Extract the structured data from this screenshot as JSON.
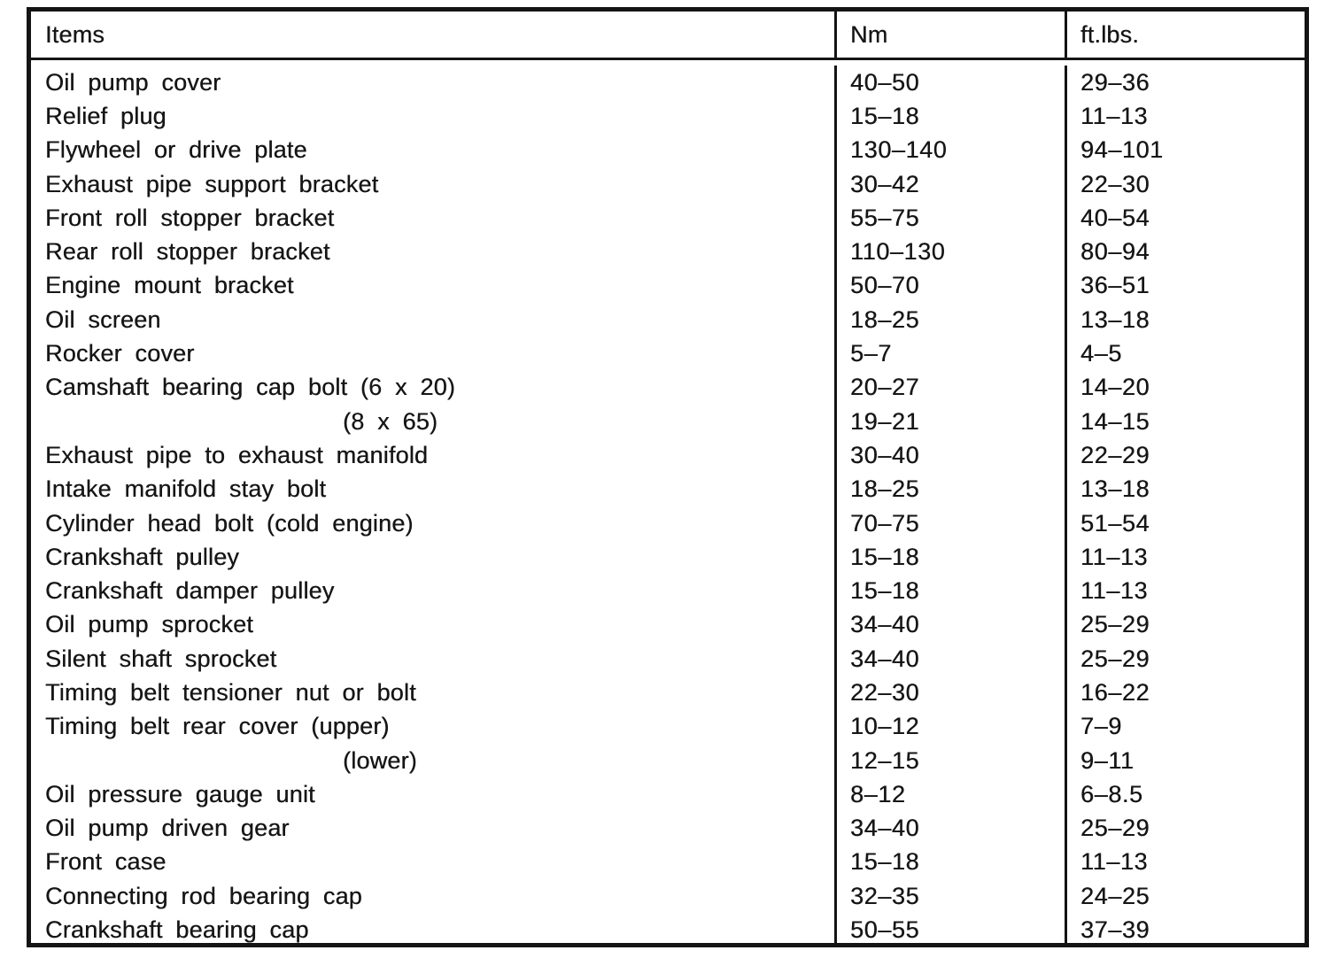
{
  "table": {
    "columns": [
      {
        "label": "Items"
      },
      {
        "label": "Nm"
      },
      {
        "label": "ft.lbs."
      }
    ],
    "rows": [
      {
        "item": "Oil pump cover",
        "nm": "40–50",
        "ftlbs": "29–36",
        "sub": false
      },
      {
        "item": "Relief plug",
        "nm": "15–18",
        "ftlbs": "11–13",
        "sub": false
      },
      {
        "item": "Flywheel or drive plate",
        "nm": "130–140",
        "ftlbs": "94–101",
        "sub": false
      },
      {
        "item": "Exhaust pipe support bracket",
        "nm": "30–42",
        "ftlbs": "22–30",
        "sub": false
      },
      {
        "item": "Front roll stopper bracket",
        "nm": "55–75",
        "ftlbs": "40–54",
        "sub": false
      },
      {
        "item": "Rear roll stopper bracket",
        "nm": "110–130",
        "ftlbs": "80–94",
        "sub": false
      },
      {
        "item": "Engine mount bracket",
        "nm": "50–70",
        "ftlbs": "36–51",
        "sub": false
      },
      {
        "item": "Oil screen",
        "nm": "18–25",
        "ftlbs": "13–18",
        "sub": false
      },
      {
        "item": "Rocker cover",
        "nm": "5–7",
        "ftlbs": "4–5",
        "sub": false
      },
      {
        "item": "Camshaft bearing cap bolt (6 x 20)",
        "nm": "20–27",
        "ftlbs": "14–20",
        "sub": false
      },
      {
        "item": "(8 x 65)",
        "nm": "19–21",
        "ftlbs": "14–15",
        "sub": true
      },
      {
        "item": "Exhaust pipe to exhaust manifold",
        "nm": "30–40",
        "ftlbs": "22–29",
        "sub": false
      },
      {
        "item": "Intake manifold stay bolt",
        "nm": "18–25",
        "ftlbs": "13–18",
        "sub": false
      },
      {
        "item": "Cylinder head bolt (cold engine)",
        "nm": "70–75",
        "ftlbs": "51–54",
        "sub": false
      },
      {
        "item": "Crankshaft pulley",
        "nm": "15–18",
        "ftlbs": "11–13",
        "sub": false
      },
      {
        "item": "Crankshaft damper pulley",
        "nm": "15–18",
        "ftlbs": "11–13",
        "sub": false
      },
      {
        "item": "Oil pump sprocket",
        "nm": "34–40",
        "ftlbs": "25–29",
        "sub": false
      },
      {
        "item": "Silent shaft sprocket",
        "nm": "34–40",
        "ftlbs": "25–29",
        "sub": false
      },
      {
        "item": "Timing belt tensioner nut or bolt",
        "nm": "22–30",
        "ftlbs": "16–22",
        "sub": false
      },
      {
        "item": "Timing belt rear cover (upper)",
        "nm": "10–12",
        "ftlbs": "7–9",
        "sub": false
      },
      {
        "item": "(lower)",
        "nm": "12–15",
        "ftlbs": "9–11",
        "sub": true
      },
      {
        "item": "Oil pressure gauge unit",
        "nm": "8–12",
        "ftlbs": "6–8.5",
        "sub": false
      },
      {
        "item": "Oil pump driven gear",
        "nm": "34–40",
        "ftlbs": "25–29",
        "sub": false
      },
      {
        "item": "Front case",
        "nm": "15–18",
        "ftlbs": "11–13",
        "sub": false
      },
      {
        "item": "Connecting rod bearing cap",
        "nm": "32–35",
        "ftlbs": "24–25",
        "sub": false
      },
      {
        "item": "Crankshaft bearing cap",
        "nm": "50–55",
        "ftlbs": "37–39",
        "sub": false
      }
    ]
  },
  "colors": {
    "ink": "#161616",
    "paper": "#ffffff"
  }
}
